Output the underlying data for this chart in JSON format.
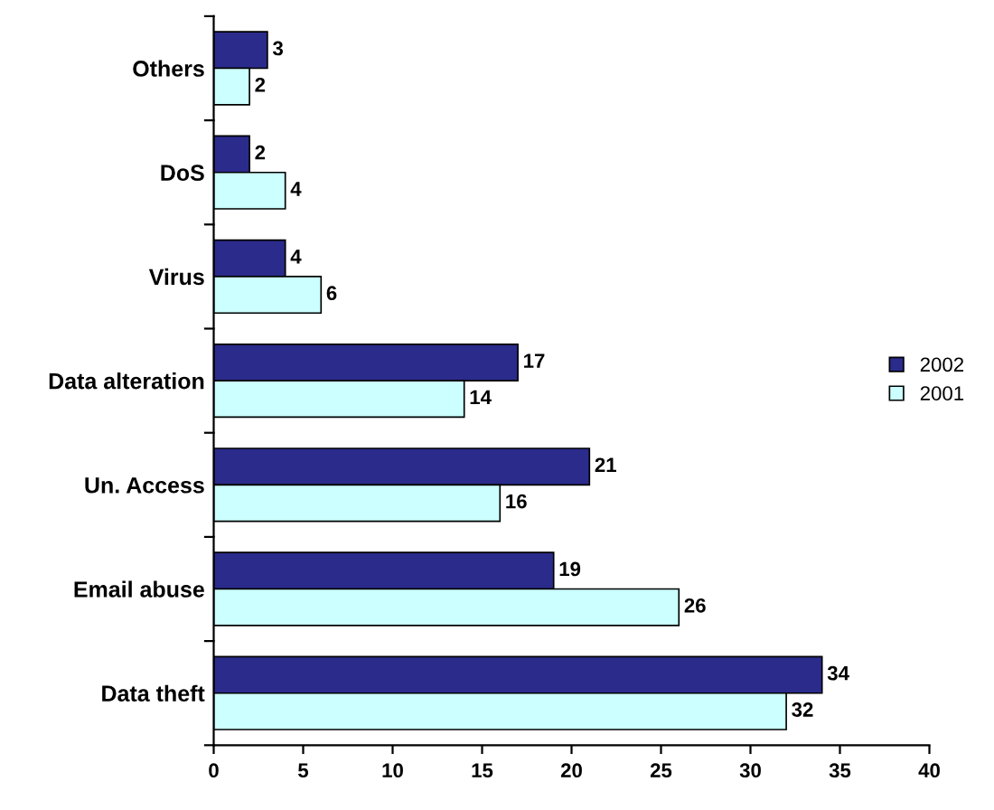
{
  "chart_data": {
    "type": "bar",
    "orientation": "horizontal",
    "categories": [
      "Others",
      "DoS",
      "Virus",
      "Data alteration",
      "Un. Access",
      "Email abuse",
      "Data theft"
    ],
    "series": [
      {
        "name": "2002",
        "color": "#2b2b8c",
        "values": [
          3,
          2,
          4,
          17,
          21,
          19,
          34
        ]
      },
      {
        "name": "2001",
        "color": "#ccffff",
        "values": [
          2,
          4,
          6,
          14,
          16,
          26,
          32
        ]
      }
    ],
    "xlim": [
      0,
      40
    ],
    "xticks": [
      0,
      5,
      10,
      15,
      20,
      25,
      30,
      35,
      40
    ],
    "data_labels": true,
    "legend": "right",
    "grid": false
  }
}
